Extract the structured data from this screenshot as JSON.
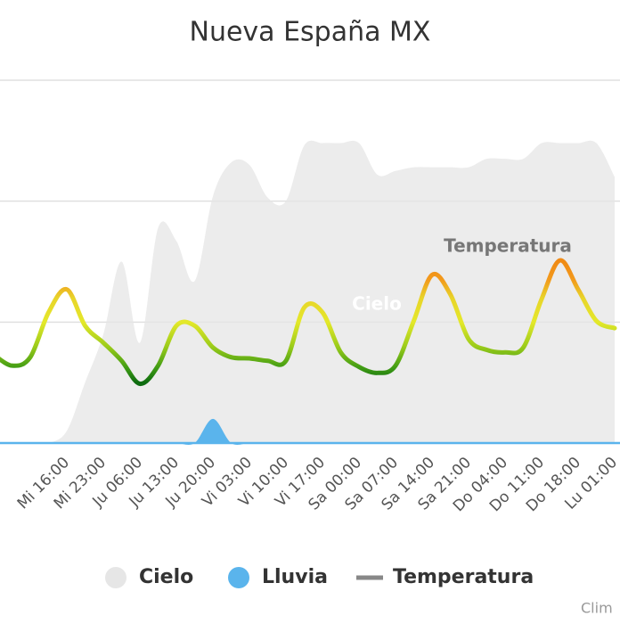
{
  "chart_data": {
    "type": "area-line",
    "title": "Nueva España MX",
    "categories": [
      null,
      null,
      null,
      null,
      "Mi 16:00",
      null,
      "Mi 23:00",
      null,
      "Ju 06:00",
      null,
      "Ju 13:00",
      null,
      "Ju 20:00",
      null,
      "Vi 03:00",
      null,
      "Vi 10:00",
      null,
      "Vi 17:00",
      null,
      "Sa 00:00",
      null,
      "Sa 07:00",
      null,
      "Sa 14:00",
      null,
      "Sa 21:00",
      null,
      "Do 04:00",
      null,
      "Do 11:00",
      null,
      "Do 18:00",
      null,
      "Lu 01:00"
    ],
    "series": [
      {
        "name": "Cielo",
        "color": "#e6e6e6",
        "values": [
          0,
          0,
          0,
          0,
          0.1,
          0.5,
          0.9,
          1.5,
          0.83,
          1.78,
          1.67,
          1.34,
          2.04,
          2.32,
          2.3,
          2.03,
          2.0,
          2.46,
          2.48,
          2.48,
          2.48,
          2.22,
          2.25,
          2.28,
          2.28,
          2.28,
          2.28,
          2.35,
          2.35,
          2.35,
          2.48,
          2.48,
          2.48,
          2.48,
          2.2
        ]
      },
      {
        "name": "Lluvia",
        "color": "#5ab4ec",
        "values": [
          0,
          0,
          0,
          0,
          0,
          0,
          0,
          0,
          0,
          0,
          0,
          0,
          0.2,
          0,
          0,
          0,
          0,
          0,
          0,
          0,
          0,
          0,
          0,
          0,
          0,
          0,
          0,
          0,
          0,
          0,
          0,
          0,
          0,
          0,
          0
        ]
      },
      {
        "name": "Temperatura",
        "color": "#888888",
        "values": [
          0.73,
          0.64,
          0.71,
          1.08,
          1.27,
          0.97,
          0.83,
          0.68,
          0.49,
          0.64,
          0.97,
          0.97,
          0.79,
          0.71,
          0.7,
          0.68,
          0.68,
          1.12,
          1.08,
          0.75,
          0.63,
          0.58,
          0.64,
          1.01,
          1.39,
          1.23,
          0.86,
          0.77,
          0.75,
          0.79,
          1.19,
          1.51,
          1.27,
          1.01,
          0.95
        ]
      }
    ],
    "color_stops": [
      {
        "value": 0.5,
        "color": "#0d6b10"
      },
      {
        "value": 0.62,
        "color": "#3f9b14"
      },
      {
        "value": 0.8,
        "color": "#9ccc1a"
      },
      {
        "value": 1.0,
        "color": "#e4e82a"
      },
      {
        "value": 1.2,
        "color": "#e8d42a"
      },
      {
        "value": 1.35,
        "color": "#f29a1c"
      },
      {
        "value": 1.5,
        "color": "#f08a14"
      }
    ],
    "ylim": [
      0,
      3
    ],
    "yticks": [
      0,
      1,
      2,
      3
    ],
    "grid": true,
    "annotations": [
      {
        "text": "Temperatura"
      },
      {
        "text": "Cielo"
      }
    ],
    "credit": "Clim"
  }
}
